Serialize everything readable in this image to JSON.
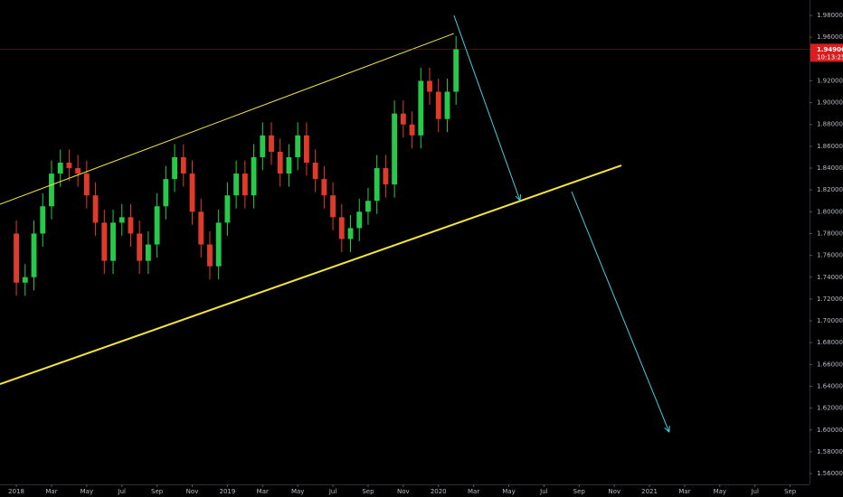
{
  "chart_data": {
    "type": "candlestick",
    "up_color": "#26c94a",
    "down_color": "#e03a2b",
    "xlim": [
      -0.93,
      45.1
    ],
    "xticks": [
      {
        "value": 0,
        "label": "2018"
      },
      {
        "value": 2,
        "label": "Mar"
      },
      {
        "value": 4,
        "label": "May"
      },
      {
        "value": 6,
        "label": "Jul"
      },
      {
        "value": 8,
        "label": "Sep"
      },
      {
        "value": 10,
        "label": "Nov"
      },
      {
        "value": 12,
        "label": "2019"
      },
      {
        "value": 14,
        "label": "Mar"
      },
      {
        "value": 16,
        "label": "May"
      },
      {
        "value": 18,
        "label": "Jul"
      },
      {
        "value": 20,
        "label": "Sep"
      },
      {
        "value": 22,
        "label": "Nov"
      },
      {
        "value": 24,
        "label": "2020"
      },
      {
        "value": 26,
        "label": "Mar"
      },
      {
        "value": 28,
        "label": "May"
      },
      {
        "value": 30,
        "label": "Jul"
      },
      {
        "value": 32,
        "label": "Sep"
      },
      {
        "value": 34,
        "label": "Nov"
      },
      {
        "value": 36,
        "label": "2021"
      },
      {
        "value": 38,
        "label": "Mar"
      },
      {
        "value": 40,
        "label": "May"
      },
      {
        "value": 42,
        "label": "Jul"
      },
      {
        "value": 44,
        "label": "Sep"
      }
    ],
    "ylim": [
      1.5501,
      1.9941
    ],
    "yticks": [
      {
        "value": 1.56,
        "label": "1.56000"
      },
      {
        "value": 1.58,
        "label": "1.58000"
      },
      {
        "value": 1.6,
        "label": "1.60000"
      },
      {
        "value": 1.62,
        "label": "1.62000"
      },
      {
        "value": 1.64,
        "label": "1.64000"
      },
      {
        "value": 1.66,
        "label": "1.66000"
      },
      {
        "value": 1.68,
        "label": "1.68000"
      },
      {
        "value": 1.7,
        "label": "1.70000"
      },
      {
        "value": 1.72,
        "label": "1.72000"
      },
      {
        "value": 1.74,
        "label": "1.74000"
      },
      {
        "value": 1.76,
        "label": "1.76000"
      },
      {
        "value": 1.78,
        "label": "1.78000"
      },
      {
        "value": 1.8,
        "label": "1.80000"
      },
      {
        "value": 1.82,
        "label": "1.82000"
      },
      {
        "value": 1.84,
        "label": "1.84000"
      },
      {
        "value": 1.86,
        "label": "1.86000"
      },
      {
        "value": 1.88,
        "label": "1.88000"
      },
      {
        "value": 1.9,
        "label": "1.90000"
      },
      {
        "value": 1.92,
        "label": "1.92000"
      },
      {
        "value": 1.96,
        "label": "1.96000"
      },
      {
        "value": 1.98,
        "label": "1.98000"
      }
    ],
    "x": [
      0,
      0.5,
      1,
      1.5,
      2,
      2.5,
      3,
      3.5,
      4,
      4.5,
      5,
      5.5,
      6,
      6.5,
      7,
      7.5,
      8,
      8.5,
      9,
      9.5,
      10,
      10.5,
      11,
      11.5,
      12,
      12.5,
      13,
      13.5,
      14,
      14.5,
      15,
      15.5,
      16,
      16.5,
      17,
      17.5,
      18,
      18.5,
      19,
      19.5,
      20,
      20.5,
      21,
      21.5,
      22,
      22.5,
      23,
      23.5,
      24,
      24.5,
      25
    ],
    "open": [
      1.78,
      1.735,
      1.74,
      1.78,
      1.805,
      1.835,
      1.845,
      1.84,
      1.835,
      1.815,
      1.79,
      1.755,
      1.79,
      1.795,
      1.78,
      1.755,
      1.77,
      1.805,
      1.83,
      1.85,
      1.835,
      1.8,
      1.77,
      1.75,
      1.79,
      1.815,
      1.835,
      1.815,
      1.85,
      1.87,
      1.855,
      1.835,
      1.85,
      1.87,
      1.845,
      1.83,
      1.815,
      1.795,
      1.775,
      1.785,
      1.8,
      1.81,
      1.84,
      1.825,
      1.89,
      1.88,
      1.87,
      1.92,
      1.91,
      1.885,
      1.91
    ],
    "high": [
      1.792,
      1.752,
      1.792,
      1.817,
      1.847,
      1.857,
      1.857,
      1.852,
      1.847,
      1.827,
      1.802,
      1.802,
      1.807,
      1.807,
      1.792,
      1.782,
      1.817,
      1.842,
      1.862,
      1.862,
      1.847,
      1.812,
      1.782,
      1.802,
      1.827,
      1.847,
      1.847,
      1.862,
      1.882,
      1.882,
      1.867,
      1.862,
      1.882,
      1.882,
      1.857,
      1.842,
      1.827,
      1.807,
      1.797,
      1.812,
      1.822,
      1.852,
      1.852,
      1.902,
      1.902,
      1.892,
      1.932,
      1.932,
      1.922,
      1.922,
      1.961
    ],
    "low": [
      1.723,
      1.723,
      1.728,
      1.768,
      1.793,
      1.823,
      1.828,
      1.823,
      1.803,
      1.778,
      1.743,
      1.743,
      1.778,
      1.768,
      1.743,
      1.743,
      1.758,
      1.793,
      1.818,
      1.823,
      1.788,
      1.758,
      1.738,
      1.738,
      1.778,
      1.803,
      1.803,
      1.803,
      1.838,
      1.843,
      1.823,
      1.823,
      1.838,
      1.833,
      1.818,
      1.803,
      1.783,
      1.763,
      1.763,
      1.773,
      1.788,
      1.798,
      1.813,
      1.813,
      1.868,
      1.858,
      1.858,
      1.898,
      1.873,
      1.873,
      1.898
    ],
    "close": [
      1.735,
      1.74,
      1.78,
      1.805,
      1.835,
      1.845,
      1.84,
      1.835,
      1.815,
      1.79,
      1.755,
      1.79,
      1.795,
      1.78,
      1.755,
      1.77,
      1.805,
      1.83,
      1.85,
      1.835,
      1.8,
      1.77,
      1.75,
      1.79,
      1.815,
      1.835,
      1.815,
      1.85,
      1.87,
      1.855,
      1.835,
      1.85,
      1.87,
      1.845,
      1.83,
      1.815,
      1.795,
      1.775,
      1.785,
      1.8,
      1.81,
      1.84,
      1.825,
      1.89,
      1.88,
      1.87,
      1.92,
      1.91,
      1.885,
      1.91,
      1.949
    ],
    "last_price": {
      "value": 1.94906,
      "label": "1.94906"
    },
    "countdown": "10:13:25",
    "price_color": "#d81e1e",
    "drawings": [
      {
        "color": "#f5e63a",
        "width": 1,
        "arrow": false,
        "x": [
          -0.93,
          24.88
        ],
        "y": [
          1.8069,
          1.9634
        ]
      },
      {
        "color": "#f5e63a",
        "width": 2,
        "arrow": false,
        "x": [
          -0.93,
          34.4
        ],
        "y": [
          1.642,
          1.8425
        ]
      },
      {
        "color": "#3fd0e0",
        "width": 1,
        "arrow": true,
        "x": [
          24.88,
          28.64
        ],
        "y": [
          1.98,
          1.8102
        ]
      },
      {
        "color": "#3fd0e0",
        "width": 1,
        "arrow": true,
        "x": [
          31.57,
          37.12
        ],
        "y": [
          1.8185,
          1.598
        ]
      }
    ]
  }
}
